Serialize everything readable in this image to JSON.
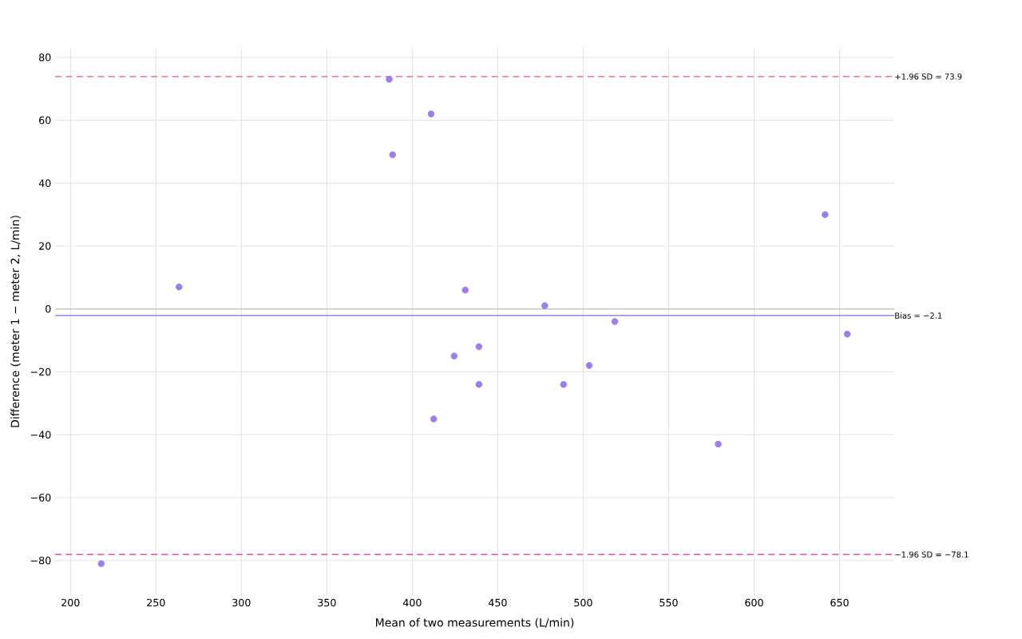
{
  "chart_data": {
    "type": "scatter",
    "xlabel": "Mean of two measurements (L/min)",
    "ylabel": "Difference (meter 1 − meter 2, L/min)",
    "x": [
      218,
      263.5,
      386.5,
      388.5,
      411,
      412.5,
      424.5,
      431,
      439,
      439,
      477.5,
      488.5,
      503.5,
      518.5,
      579,
      641.5,
      654.5
    ],
    "series": [
      {
        "color": "#9b7fe8",
        "values": [
          -81,
          7,
          73,
          49,
          62,
          -35,
          -15,
          6,
          -12,
          -24,
          1,
          -24,
          -18,
          -4,
          -43,
          30,
          -8
        ]
      }
    ],
    "grid": true,
    "xlim": [
      191,
      682
    ],
    "ylim": [
      -91,
      83
    ],
    "xticks": [
      200,
      250,
      300,
      350,
      400,
      450,
      500,
      550,
      600,
      650
    ],
    "yticks": [
      {
        "value": -80,
        "label": "−80"
      },
      {
        "value": -60,
        "label": "−60"
      },
      {
        "value": -40,
        "label": "−40"
      },
      {
        "value": -20,
        "label": "−20"
      },
      0,
      20,
      40,
      60,
      80
    ],
    "ref_lines": [
      {
        "axis": "y",
        "value": 73.9,
        "label": "+1.96 SD = 73.9",
        "color": "#e0559a",
        "line_style": "dashed"
      },
      {
        "axis": "y",
        "value": -2.1,
        "label": "Bias = −2.1",
        "color": "#9b7fe8",
        "line_style": "solid"
      },
      {
        "axis": "y",
        "value": -78.1,
        "label": "−1.96 SD = −78.1",
        "color": "#e0559a",
        "line_style": "dashed"
      }
    ]
  }
}
